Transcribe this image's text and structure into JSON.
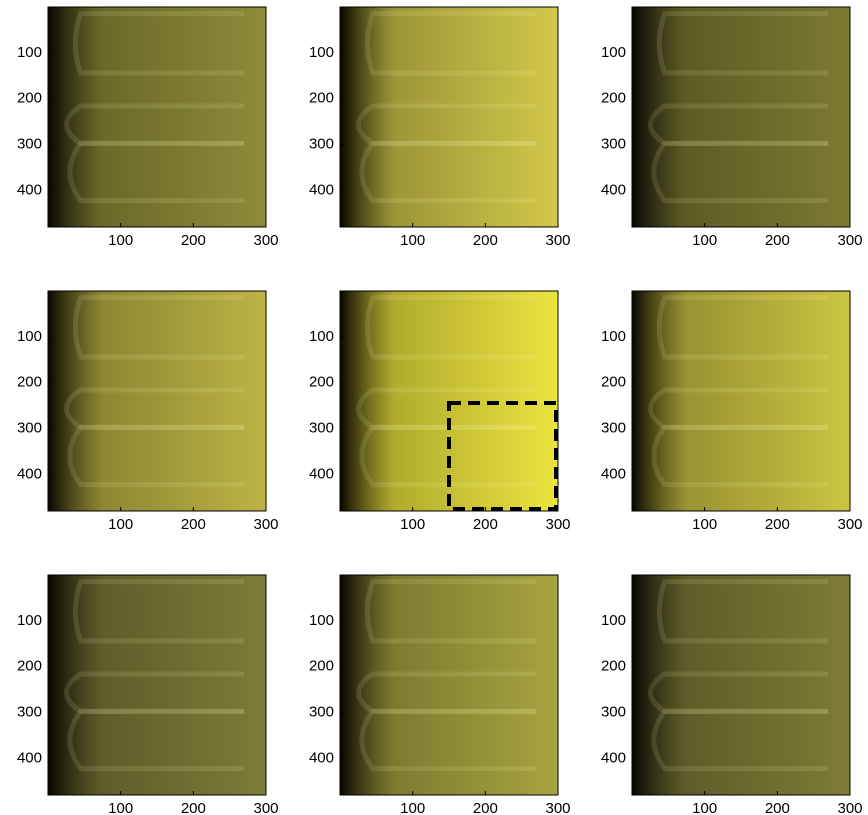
{
  "chart_data": [
    {
      "type": "image",
      "xlim": [
        0,
        300
      ],
      "ylim": [
        0,
        480
      ],
      "y_reversed": true,
      "xticks": [
        100,
        200,
        300
      ],
      "yticks": [
        100,
        200,
        300,
        400
      ],
      "color": "#8e8c38"
    },
    {
      "type": "image",
      "xlim": [
        0,
        300
      ],
      "ylim": [
        0,
        480
      ],
      "y_reversed": true,
      "xticks": [
        100,
        200,
        300
      ],
      "yticks": [
        100,
        200,
        300,
        400
      ],
      "color": "#d2c84a"
    },
    {
      "type": "image",
      "xlim": [
        0,
        300
      ],
      "ylim": [
        0,
        480
      ],
      "y_reversed": true,
      "xticks": [
        100,
        200,
        300
      ],
      "yticks": [
        100,
        200,
        300,
        400
      ],
      "color": "#7c7a32"
    },
    {
      "type": "image",
      "xlim": [
        0,
        300
      ],
      "ylim": [
        0,
        480
      ],
      "y_reversed": true,
      "xticks": [
        100,
        200,
        300
      ],
      "yticks": [
        100,
        200,
        300,
        400
      ],
      "color": "#bcb444"
    },
    {
      "type": "image",
      "xlim": [
        0,
        300
      ],
      "ylim": [
        0,
        480
      ],
      "y_reversed": true,
      "xticks": [
        100,
        200,
        300
      ],
      "yticks": [
        100,
        200,
        300,
        400
      ],
      "color": "#ece43e",
      "highlight_box": {
        "x": [
          150,
          300
        ],
        "y": [
          240,
          480
        ]
      }
    },
    {
      "type": "image",
      "xlim": [
        0,
        300
      ],
      "ylim": [
        0,
        480
      ],
      "y_reversed": true,
      "xticks": [
        100,
        200,
        300
      ],
      "yticks": [
        100,
        200,
        300,
        400
      ],
      "color": "#ccc442"
    },
    {
      "type": "image",
      "xlim": [
        0,
        300
      ],
      "ylim": [
        0,
        480
      ],
      "y_reversed": true,
      "xticks": [
        100,
        200,
        300
      ],
      "yticks": [
        100,
        200,
        300,
        400
      ],
      "color": "#7e7c38"
    },
    {
      "type": "image",
      "xlim": [
        0,
        300
      ],
      "ylim": [
        0,
        480
      ],
      "y_reversed": true,
      "xticks": [
        100,
        200,
        300
      ],
      "yticks": [
        100,
        200,
        300,
        400
      ],
      "color": "#a8a440"
    },
    {
      "type": "image",
      "xlim": [
        0,
        300
      ],
      "ylim": [
        0,
        480
      ],
      "y_reversed": true,
      "xticks": [
        100,
        200,
        300
      ],
      "yticks": [
        100,
        200,
        300,
        400
      ],
      "color": "#7e7c36"
    }
  ]
}
